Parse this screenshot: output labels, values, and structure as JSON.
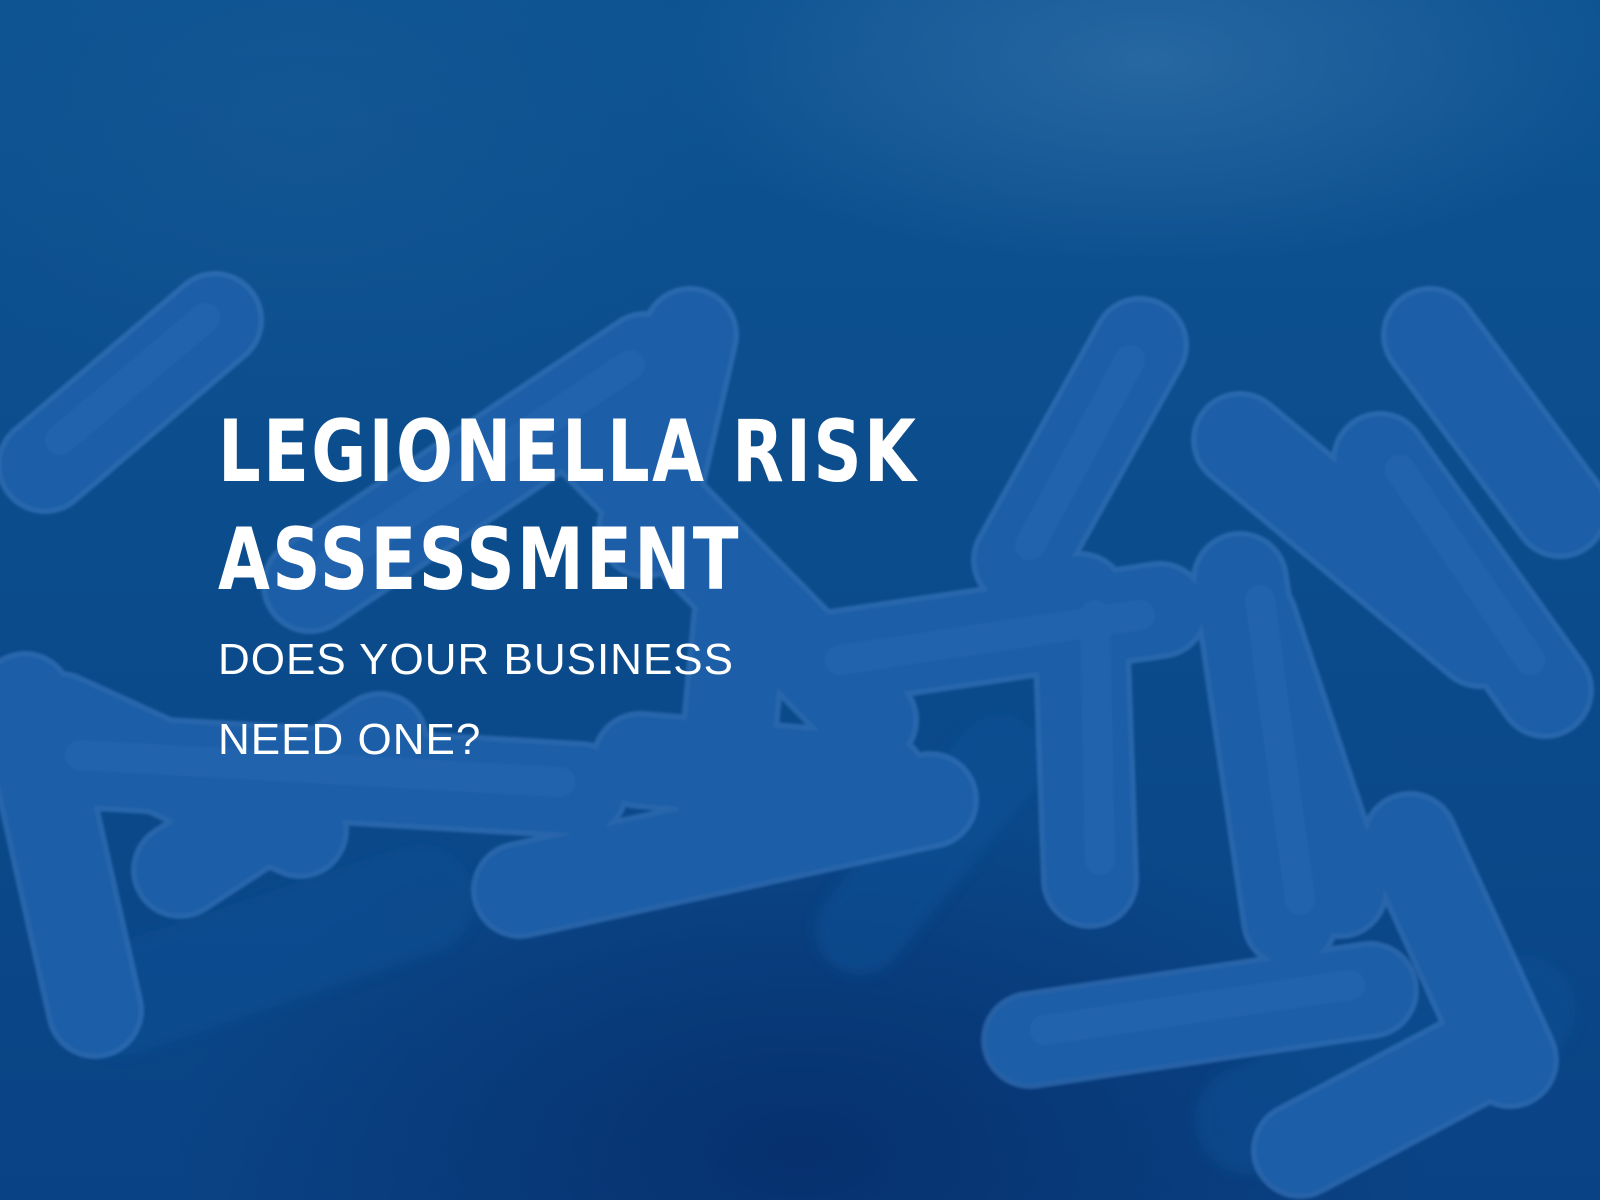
{
  "image": {
    "subject": "legionella-bacteria-background",
    "colors": {
      "background": "#0b4c8c",
      "bacteria_fill": "#1b5ea8",
      "bacteria_edge": "#3f7fc6",
      "text": "#ffffff"
    }
  },
  "headline": {
    "line1": "LEGIONELLA RISK",
    "line2": "ASSESSMENT"
  },
  "subheadline": {
    "line1": "DOES YOUR BUSINESS",
    "line2": "NEED ONE?"
  }
}
